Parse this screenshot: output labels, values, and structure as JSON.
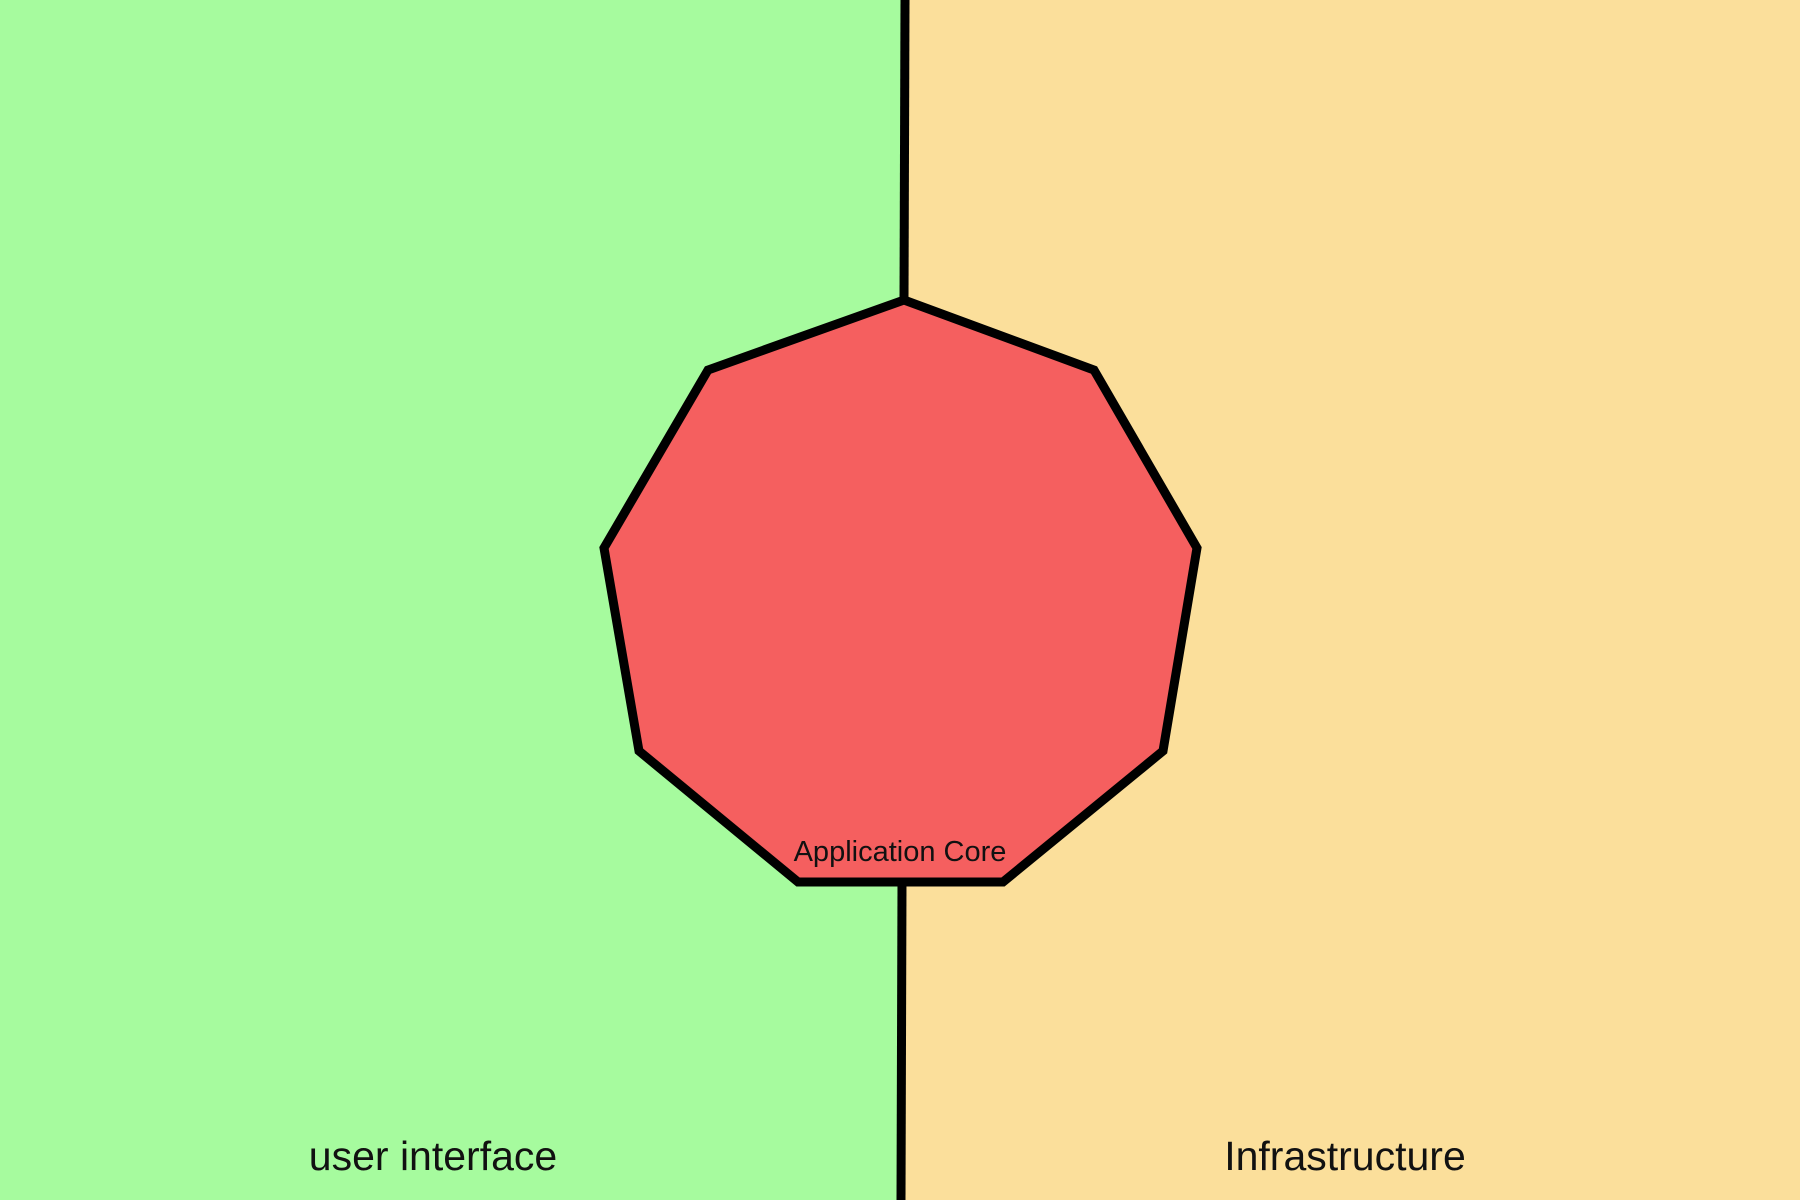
{
  "diagram": {
    "regions": {
      "left": {
        "label": "user interface",
        "color": "#A6FB9E"
      },
      "right": {
        "label": "Infrastructure",
        "color": "#FBDF9B"
      }
    },
    "core": {
      "label": "Application Core",
      "color": "#F55F5F",
      "sides": 9
    },
    "stroke_color": "#000000"
  }
}
